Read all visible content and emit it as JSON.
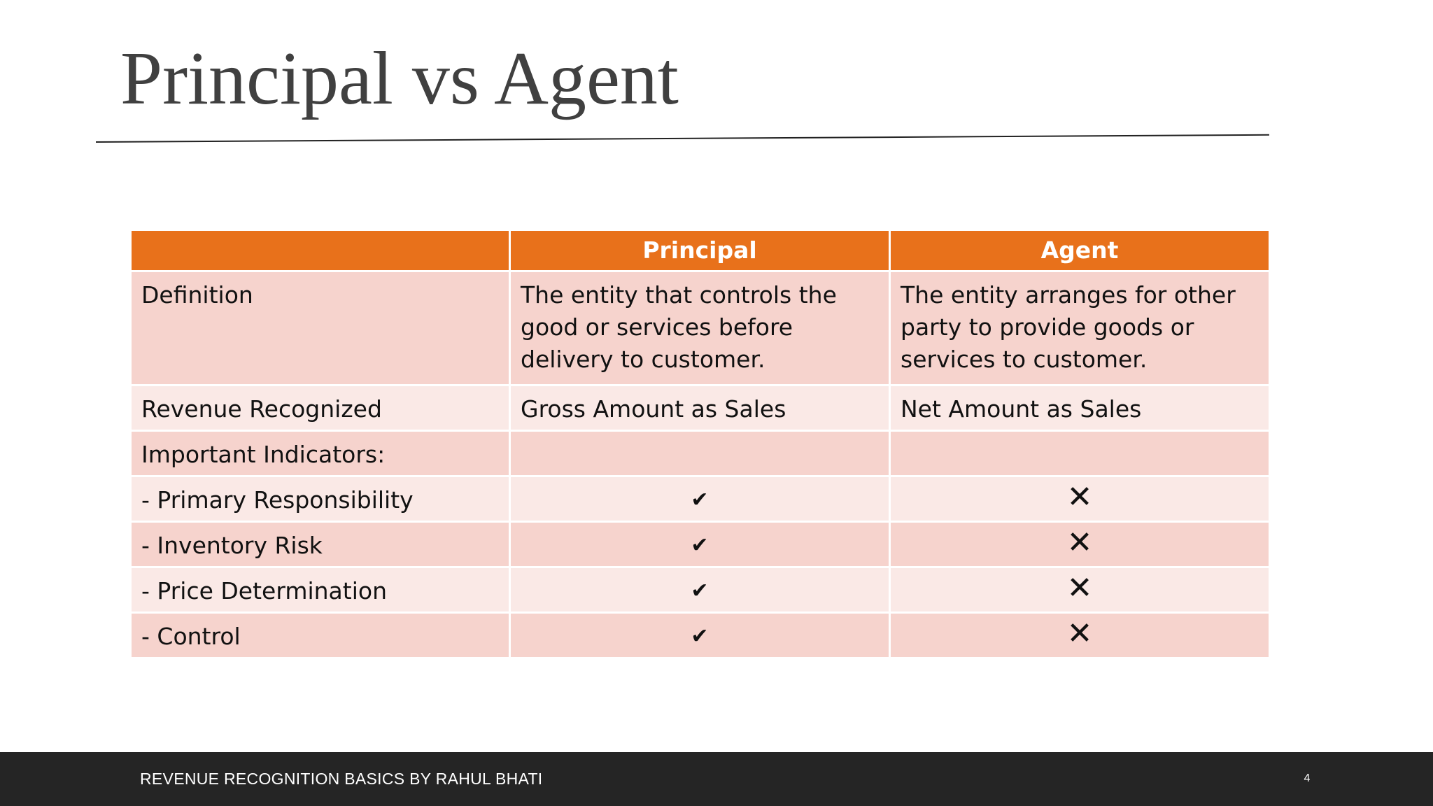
{
  "slide": {
    "title": "Principal vs Agent"
  },
  "table": {
    "headers": [
      "",
      "Principal",
      "Agent"
    ],
    "rows": [
      {
        "label": "Definition",
        "principal": "The entity that controls the good or services before delivery to customer.",
        "agent": "The entity arranges for other party to provide goods or services to customer."
      },
      {
        "label": "Revenue Recognized",
        "principal": "Gross Amount as Sales",
        "agent": "Net Amount as Sales"
      },
      {
        "label": "Important Indicators:",
        "principal": "",
        "agent": ""
      },
      {
        "label": "- Primary Responsibility",
        "principal_mark": "check-icon",
        "agent_mark": "cross-icon"
      },
      {
        "label": "- Inventory Risk",
        "principal_mark": "check-icon",
        "agent_mark": "cross-icon"
      },
      {
        "label": "- Price Determination",
        "principal_mark": "check-icon",
        "agent_mark": "cross-icon"
      },
      {
        "label": "- Control",
        "principal_mark": "check-icon",
        "agent_mark": "cross-icon"
      }
    ]
  },
  "footer": {
    "text": "REVENUE RECOGNITION BASICS BY RAHUL BHATI",
    "page_number": "4"
  },
  "colors": {
    "header_fill": "#e8711b",
    "row_dark": "#f6d3cd",
    "row_light": "#fae9e6",
    "title_text": "#404040",
    "footer_bar": "#252525"
  }
}
